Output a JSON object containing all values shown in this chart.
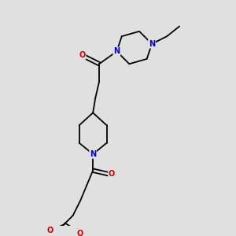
{
  "bg_color": "#e0e0e0",
  "bond_color": "#000000",
  "N_color": "#0000cc",
  "O_color": "#cc0000",
  "line_width": 1.3,
  "figsize": [
    3.0,
    3.0
  ],
  "dpi": 100,
  "xlim": [
    1.5,
    8.5
  ],
  "ylim": [
    0.5,
    9.5
  ]
}
